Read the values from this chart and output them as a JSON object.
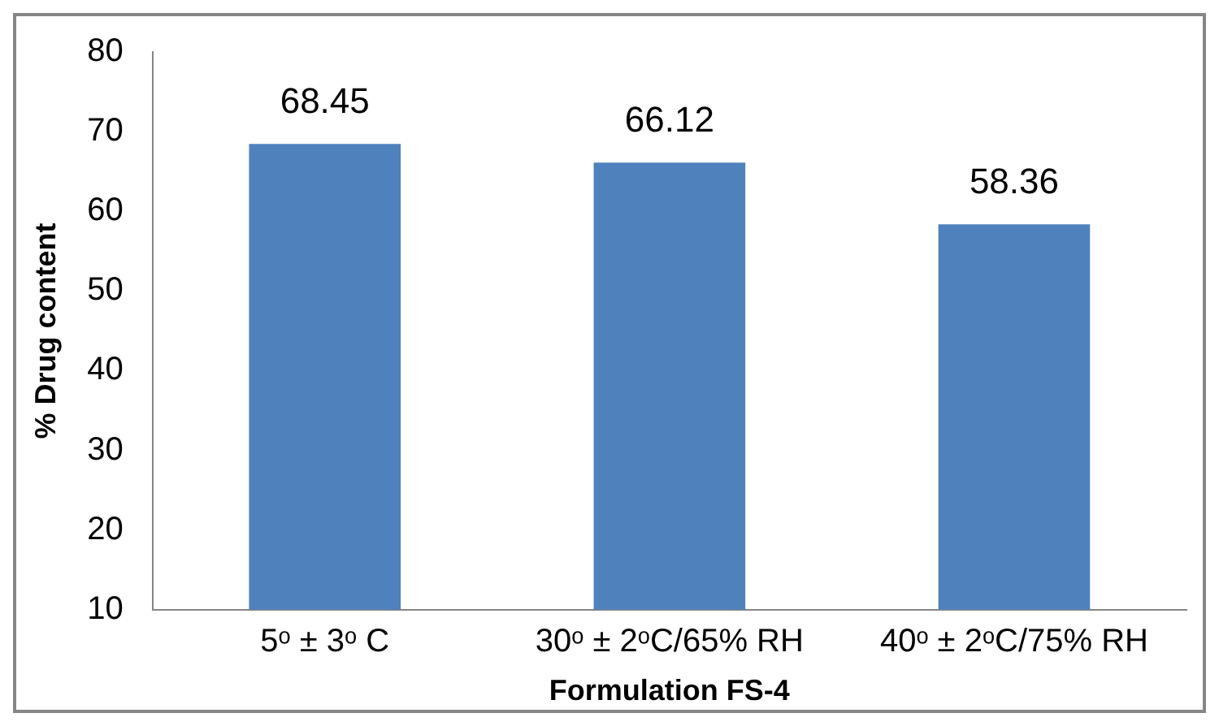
{
  "chart_data": {
    "type": "bar",
    "xlabel": "Formulation FS-4",
    "ylabel": "% Drug content",
    "categories": [
      "5ᵒ ± 3ᵒ C",
      "30ᵒ ± 2ᵒC/65% RH",
      "40ᵒ ± 2ᵒC/75% RH"
    ],
    "values": [
      68.45,
      66.12,
      58.36
    ],
    "color": "#4f81bd",
    "data_labels": true,
    "ylim": [
      10,
      80
    ],
    "yticks": [
      10,
      20,
      30,
      40,
      50,
      60,
      70,
      80
    ],
    "grid": false,
    "legend": false
  }
}
